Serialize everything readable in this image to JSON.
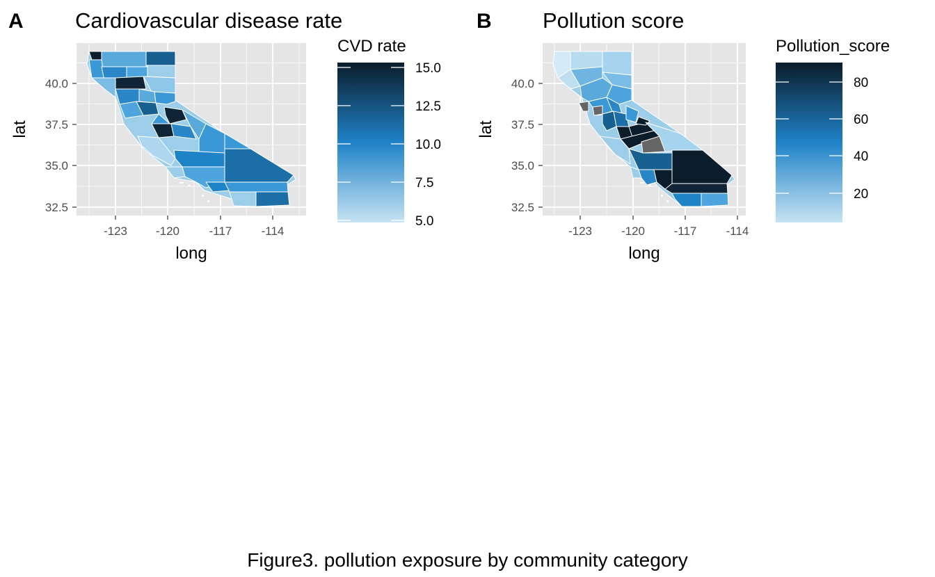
{
  "caption": "Figure3. pollution exposure by community category",
  "colors": {
    "panel_background": "#e5e5e5",
    "grid": "#ffffff",
    "county_border": "#ffffff",
    "missing": "#666666",
    "scale_low": "#c6e3f2",
    "scale_mid": "#1f83c8",
    "scale_high": "#0b1c2a"
  },
  "panels": [
    {
      "tag": "A",
      "title": "Cardiovascular disease rate",
      "xlabel": "long",
      "ylabel": "lat",
      "x_ticks": [
        "-123",
        "-120",
        "-117",
        "-114"
      ],
      "y_ticks": [
        "32.5",
        "35.0",
        "37.5",
        "40.0"
      ],
      "legend": {
        "title": "CVD rate",
        "ticks": [
          "15.0",
          "12.5",
          "10.0",
          "7.5",
          "5.0"
        ]
      }
    },
    {
      "tag": "B",
      "title": "Pollution score",
      "xlabel": "long",
      "ylabel": "lat",
      "x_ticks": [
        "-123",
        "-120",
        "-117",
        "-114"
      ],
      "y_ticks": [
        "32.5",
        "35.0",
        "37.5",
        "40.0"
      ],
      "legend": {
        "title": "Pollution_score",
        "ticks": [
          "80",
          "60",
          "40",
          "20"
        ]
      }
    }
  ],
  "chart_data": [
    {
      "type": "heatmap",
      "title": "Cardiovascular disease rate",
      "xlabel": "long",
      "ylabel": "lat",
      "x_ticks": [
        -123,
        -120,
        -117,
        -114
      ],
      "y_ticks": [
        32.5,
        35.0,
        37.5,
        40.0
      ],
      "legend_title": "CVD rate",
      "legend_range": [
        4.8,
        15.3
      ],
      "legend_ticks": [
        5.0,
        7.5,
        10.0,
        12.5,
        15.0
      ],
      "legend_position": "right"
    },
    {
      "type": "heatmap",
      "title": "Pollution score",
      "xlabel": "long",
      "ylabel": "lat",
      "x_ticks": [
        -123,
        -120,
        -117,
        -114
      ],
      "y_ticks": [
        32.5,
        35.0,
        37.5,
        40.0
      ],
      "legend_title": "Pollution_score",
      "legend_range": [
        3,
        89
      ],
      "legend_ticks": [
        20,
        40,
        60,
        80
      ],
      "legend_position": "right"
    }
  ]
}
